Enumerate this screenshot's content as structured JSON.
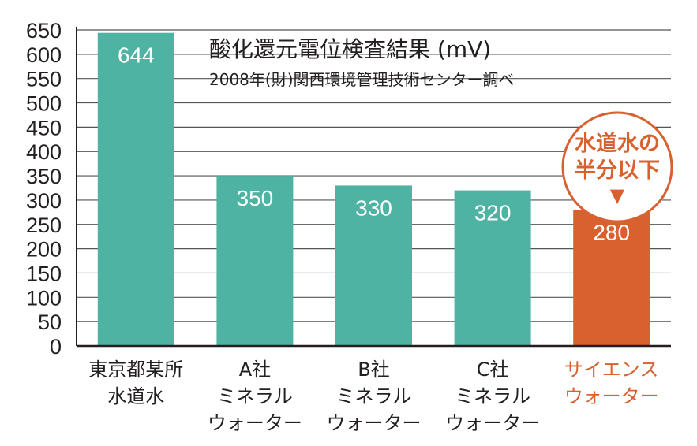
{
  "chart_data": {
    "type": "bar",
    "title": "酸化還元電位検査結果 (mV)",
    "subtitle": "2008年(財)関西環境管理技術センター調べ",
    "categories": [
      [
        "東京都某所",
        "水道水"
      ],
      [
        "A社",
        "ミネラル",
        "ウォーター"
      ],
      [
        "B社",
        "ミネラル",
        "ウォーター"
      ],
      [
        "C社",
        "ミネラル",
        "ウォーター"
      ],
      [
        "サイエンス",
        "ウォーター"
      ]
    ],
    "values": [
      644,
      350,
      330,
      320,
      280
    ],
    "value_labels": [
      "644",
      "350",
      "330",
      "320",
      "280"
    ],
    "highlight_index": 4,
    "ylim": [
      0,
      650
    ],
    "yticks": [
      0,
      50,
      100,
      150,
      200,
      250,
      300,
      350,
      400,
      450,
      500,
      550,
      600,
      650
    ],
    "ytick_labels": [
      "0",
      "50",
      "100",
      "150",
      "200",
      "250",
      "300",
      "350",
      "400",
      "450",
      "500",
      "550",
      "600",
      "650"
    ],
    "grid": true,
    "colors": {
      "bar": "#4fb3a3",
      "highlight": "#d9612f",
      "grid": "#555555",
      "text": "#231f20"
    },
    "callout": {
      "lines": [
        "水道水の",
        "半分以下"
      ],
      "marker": "▼"
    }
  }
}
